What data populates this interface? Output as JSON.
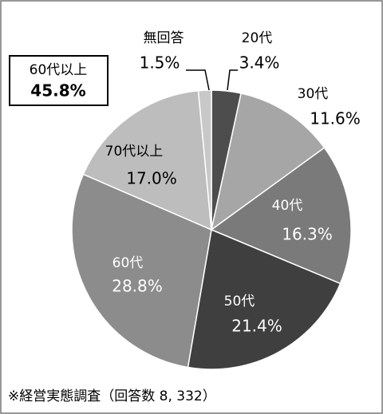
{
  "chart_data": {
    "type": "pie",
    "categories": [
      "20代",
      "30代",
      "40代",
      "50代",
      "60代",
      "70代以上",
      "無回答"
    ],
    "values": [
      3.4,
      11.6,
      16.3,
      21.4,
      28.8,
      17.0,
      1.5
    ],
    "value_labels": [
      "3.4%",
      "11.6%",
      "16.3%",
      "21.4%",
      "28.8%",
      "17.0%",
      "1.5%"
    ],
    "colors": [
      "#4d4d4d",
      "#a6a6a6",
      "#7a7a7a",
      "#3f3f3f",
      "#8c8c8c",
      "#bdbdbd",
      "#c8c8c8"
    ],
    "annotation": {
      "title": "60代以上",
      "value_label": "45.8%"
    },
    "footnote": "※経営実態調査（回答数 8, 332）"
  }
}
